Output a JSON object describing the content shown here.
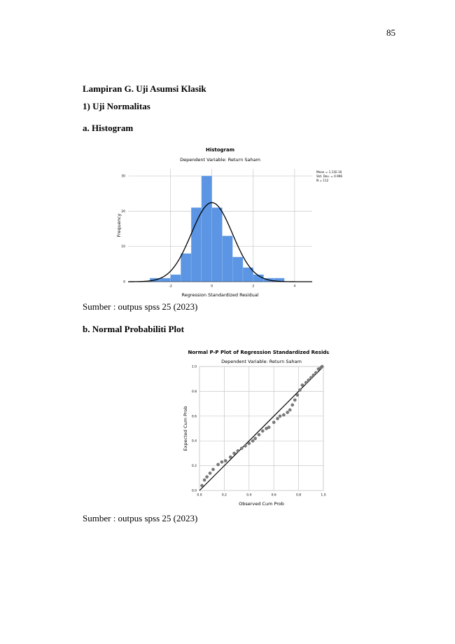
{
  "page_number": "85",
  "headings": [
    "Lampiran G. Uji Asumsi Klasik",
    "1) Uji Normalitas",
    "a. Histogram",
    "b. Normal Probabiliti Plot"
  ],
  "captions": [
    "Sumber : outpus spss 25 (2023)",
    "Sumber : outpus spss 25 (2023)"
  ],
  "chart_data": [
    {
      "type": "histogram",
      "title": "Histogram",
      "subtitle": "Dependent Variable: Return Saham",
      "x_label": "Regression Standardized Residual",
      "y_label": "Frequency",
      "bins": [
        -3,
        -2.5,
        -2,
        -1.5,
        -1,
        -0.5,
        0,
        0.5,
        1,
        1.5,
        2,
        2.5,
        3,
        3.5
      ],
      "values": [
        1,
        1,
        2,
        8,
        21,
        30,
        21,
        13,
        7,
        4,
        2,
        1,
        1
      ],
      "color": "#5b95e3",
      "xlim": [
        -4.05,
        4.85
      ],
      "xticks": [
        -2,
        0,
        2,
        4
      ],
      "ylim": [
        0,
        32
      ],
      "yticks": [
        0,
        10,
        20,
        30
      ],
      "grid": true,
      "fit": {
        "mean": {
          "value": 1.11e-16,
          "label": "Mean = 1.11E-16"
        },
        "std": {
          "value": 0.996,
          "label": "Std. Dev. = 0.996"
        },
        "n": {
          "value": 112,
          "label": "N = 112"
        }
      }
    },
    {
      "type": "scatter",
      "title": "Normal P-P Plot of Regression Standardized Residual",
      "subtitle": "Dependent Variable: Return Saham",
      "x_label": "Observed Cum Prob",
      "y_label": "Expected Cum Prob",
      "x": [
        0.02,
        0.04,
        0.06,
        0.085,
        0.11,
        0.15,
        0.18,
        0.21,
        0.25,
        0.28,
        0.31,
        0.34,
        0.37,
        0.4,
        0.43,
        0.45,
        0.48,
        0.51,
        0.54,
        0.56,
        0.6,
        0.63,
        0.65,
        0.68,
        0.71,
        0.73,
        0.75,
        0.77,
        0.79,
        0.81,
        0.83,
        0.86,
        0.88,
        0.9,
        0.92,
        0.94,
        0.96,
        0.98,
        0.99
      ],
      "values": [
        0.04,
        0.085,
        0.11,
        0.14,
        0.17,
        0.21,
        0.23,
        0.24,
        0.27,
        0.3,
        0.32,
        0.34,
        0.36,
        0.38,
        0.4,
        0.42,
        0.45,
        0.48,
        0.5,
        0.51,
        0.55,
        0.58,
        0.6,
        0.61,
        0.63,
        0.65,
        0.69,
        0.73,
        0.77,
        0.81,
        0.85,
        0.87,
        0.89,
        0.91,
        0.93,
        0.95,
        0.98,
        0.99,
        1.0
      ],
      "color": "#7a7a7a",
      "xlim": [
        0,
        1
      ],
      "ylim": [
        0,
        1
      ],
      "grid": true,
      "xticks": [
        {
          "value": 0,
          "label": "0.0"
        },
        {
          "value": 0.2,
          "label": "0.2"
        },
        {
          "value": 0.4,
          "label": "0.4"
        },
        {
          "value": 0.6,
          "label": "0.6"
        },
        {
          "value": 0.8,
          "label": "0.8"
        },
        {
          "value": 1,
          "label": "1.0"
        }
      ],
      "yticks": [
        {
          "value": 0,
          "label": "0.0"
        },
        {
          "value": 0.2,
          "label": "0.2"
        },
        {
          "value": 0.4,
          "label": "0.4"
        },
        {
          "value": 0.6,
          "label": "0.6"
        },
        {
          "value": 0.8,
          "label": "0.8"
        },
        {
          "value": 1,
          "label": "1.0"
        }
      ]
    }
  ]
}
